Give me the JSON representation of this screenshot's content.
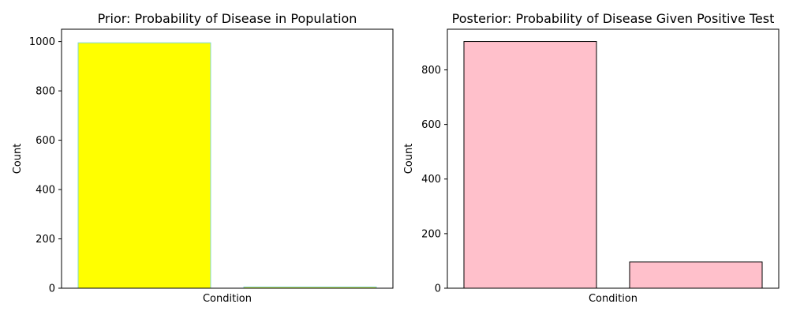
{
  "chart_data": [
    {
      "type": "bar",
      "title": "Prior: Probability of Disease in Population",
      "xlabel": "Condition",
      "ylabel": "Count",
      "categories": [
        "",
        ""
      ],
      "values": [
        995,
        5
      ],
      "ylim": [
        0,
        1050
      ],
      "yticks": [
        0,
        200,
        400,
        600,
        800,
        1000
      ],
      "grid": false,
      "bar_fill": "#ffff00",
      "bar_edge": "#7fd8d8"
    },
    {
      "type": "bar",
      "title": "Posterior: Probability of Disease Given Positive Test",
      "xlabel": "Condition",
      "ylabel": "Count",
      "categories": [
        "",
        ""
      ],
      "values": [
        904,
        96
      ],
      "ylim": [
        0,
        949
      ],
      "yticks": [
        0,
        200,
        400,
        600,
        800
      ],
      "grid": false,
      "bar_fill": "#ffc0cb",
      "bar_edge": "#000000"
    }
  ]
}
